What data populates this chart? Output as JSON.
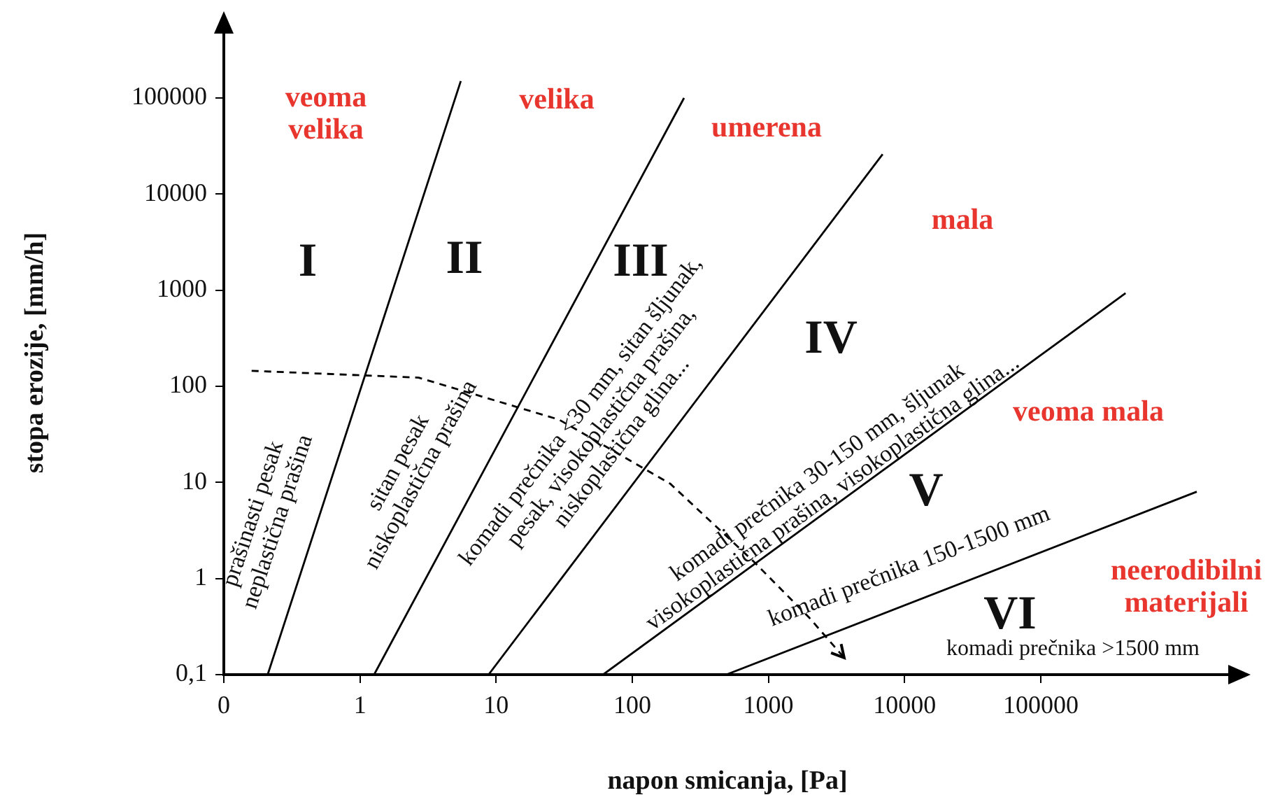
{
  "chart_data": {
    "type": "line",
    "xlabel": "napon smicanja, [Pa]",
    "ylabel": "stopa erozije, [mm/h]",
    "log": "xy",
    "grid": false,
    "legend": false,
    "marker": "none",
    "xlim": [
      0.1,
      2500000
    ],
    "ylim": [
      0.1,
      500000
    ],
    "xticks": [
      {
        "value": 0.1,
        "label": "0"
      },
      1,
      10,
      100,
      1000,
      10000,
      100000
    ],
    "yticks": [
      {
        "value": 0.1,
        "label": "0,1"
      },
      1,
      10,
      100,
      1000,
      10000,
      100000
    ],
    "series": [
      {
        "x": [
          0.21,
          5.5
        ],
        "values": [
          0.1,
          150000
        ],
        "color": "#000000"
      },
      {
        "x": [
          1.27,
          240
        ],
        "values": [
          0.1,
          100000
        ],
        "color": "#000000"
      },
      {
        "x": [
          8.8,
          6900
        ],
        "values": [
          0.1,
          26000
        ],
        "color": "#000000"
      },
      {
        "x": [
          61,
          420000
        ],
        "values": [
          0.1,
          930
        ],
        "color": "#000000"
      },
      {
        "x": [
          490,
          1400000
        ],
        "values": [
          0.1,
          8
        ],
        "color": "#000000"
      },
      {
        "x": [
          0.16,
          2.7,
          29,
          190,
          780,
          2000,
          3600
        ],
        "values": [
          145,
          123,
          45,
          9.7,
          1.5,
          0.39,
          0.15
        ],
        "color": "#000000",
        "line_style": "dashed"
      }
    ],
    "annotations": [
      "veoma\nvelika",
      "velika",
      "umerena",
      "mala",
      "veoma mala",
      "neerodibilni\nmaterijali",
      "I",
      "II",
      "III",
      "IV",
      "V",
      "VI",
      "prašinasti pesak\nneplastična prašina",
      "sitan pesak\nniskoplastična prašina",
      "komadi prečnika <30 mm, sitan šljunak,\npesak, visokoplastična prašina,\nniskoplastična glina...",
      "komadi prečnika 30-150 mm, šljunak\nvisokoplastična prašina, visokoplastična glina...",
      "komadi prečnika 150-1500 mm",
      "komadi prečnika >1500 mm"
    ]
  }
}
